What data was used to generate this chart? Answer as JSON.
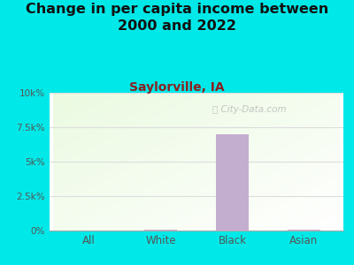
{
  "title": "Change in per capita income between\n2000 and 2022",
  "subtitle": "Saylorville, IA",
  "categories": [
    "All",
    "White",
    "Black",
    "Asian"
  ],
  "values": [
    30,
    50,
    7000,
    40
  ],
  "bar_color": "#c4aed0",
  "background_color": "#00e8e8",
  "title_fontsize": 11.5,
  "title_color": "#111111",
  "subtitle_fontsize": 10,
  "subtitle_color": "#8b2020",
  "tick_label_color": "#555555",
  "ylim": [
    0,
    10000
  ],
  "yticks": [
    0,
    2500,
    5000,
    7500,
    10000
  ],
  "ytick_labels": [
    "0%",
    "2.5k%",
    "5k%",
    "7.5k%",
    "10k%"
  ],
  "watermark": "City-Data.com",
  "watermark_color": "#bbbbbb",
  "grid_color": "#dddddd"
}
